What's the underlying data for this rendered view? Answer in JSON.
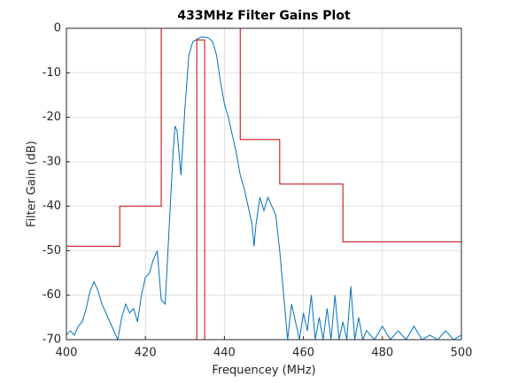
{
  "chart_data": {
    "type": "line",
    "title": "433MHz Filter Gains Plot",
    "xlabel": "Frequencey (MHz)",
    "ylabel": "Filter Gain (dB)",
    "xlim": [
      400,
      500
    ],
    "xticks": [
      400,
      420,
      440,
      460,
      480,
      500
    ],
    "ylim": [
      -70,
      0
    ],
    "yticks": [
      -70,
      -60,
      -50,
      -40,
      -30,
      -20,
      -10,
      0
    ],
    "grid": true,
    "series": [
      {
        "color": "#0072bd",
        "x": [
          400,
          401,
          402,
          403,
          404,
          405,
          406,
          407,
          408,
          409,
          410,
          411,
          412,
          413,
          414,
          415,
          416,
          417,
          418,
          419,
          420,
          421,
          422,
          423,
          424,
          425,
          426,
          427,
          427.5,
          428,
          429,
          430,
          431,
          432,
          433,
          434,
          435,
          436,
          437,
          438,
          439,
          440,
          441,
          442,
          443,
          444,
          445,
          446,
          447,
          447.5,
          448,
          449,
          450,
          451,
          452,
          453,
          454,
          455,
          456,
          457,
          458,
          459,
          460,
          461,
          462,
          463,
          464,
          465,
          466,
          467,
          468,
          469,
          470,
          471,
          472,
          473,
          474,
          475,
          476,
          478,
          480,
          482,
          484,
          486,
          488,
          490,
          492,
          494,
          496,
          498,
          500
        ],
        "values": [
          -69,
          -68,
          -69,
          -67,
          -66,
          -63,
          -59,
          -57,
          -59,
          -62,
          -64,
          -66,
          -68,
          -70,
          -65,
          -62,
          -64,
          -63,
          -66,
          -60,
          -56,
          -55,
          -52,
          -50,
          -61,
          -62,
          -45,
          -28,
          -22,
          -23,
          -33,
          -18,
          -6,
          -3,
          -2.5,
          -2,
          -2,
          -2.2,
          -3,
          -6,
          -12,
          -17,
          -20,
          -24,
          -28,
          -33,
          -36,
          -40,
          -44,
          -49,
          -44,
          -38,
          -41,
          -38,
          -40,
          -42,
          -50,
          -60,
          -70,
          -62,
          -66,
          -70,
          -64,
          -68,
          -60,
          -70,
          -65,
          -70,
          -63,
          -70,
          -60,
          -70,
          -66,
          -70,
          -58,
          -70,
          -65,
          -70,
          -68,
          -70,
          -67,
          -70,
          -68,
          -70,
          -67,
          -70,
          -69,
          -70,
          -68,
          -70,
          -69
        ]
      },
      {
        "color": "#c00000",
        "x": [
          400,
          413.5,
          413.5,
          424,
          424,
          444,
          444,
          454,
          454,
          470,
          470,
          500
        ],
        "values": [
          -49,
          -49,
          -40,
          -40,
          0,
          0,
          -25,
          -25,
          -35,
          -35,
          -48,
          -48
        ]
      },
      {
        "color": "#c00000",
        "x": [
          433,
          433,
          435,
          435
        ],
        "values": [
          -70,
          -2.6,
          -2.6,
          -70
        ]
      }
    ]
  }
}
